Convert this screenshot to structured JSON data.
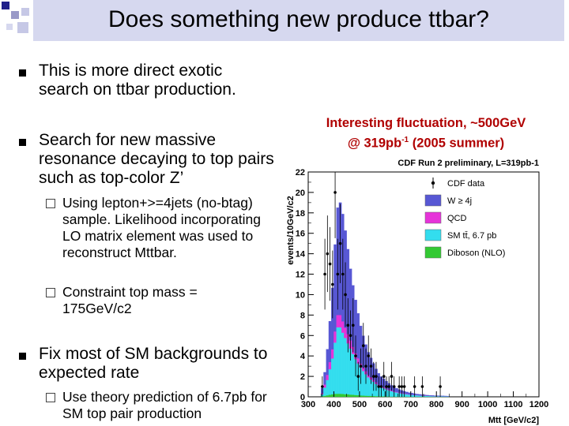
{
  "slide": {
    "title": "Does something new produce ttbar?",
    "bullets": [
      {
        "text": "This is more direct exotic search on ttbar production."
      },
      {
        "text": "Search for new massive resonance decaying to top pairs such as top-color Z’",
        "subbullets": [
          "Using lepton+>=4jets (no-btag) sample. Likelihood incorporating LO matrix element was used to reconstruct Mttbar.",
          "Constraint top mass = 175GeV/c2"
        ]
      },
      {
        "text": "Fix most of SM backgrounds to expected rate",
        "subbullets": [
          "Use theory prediction of 6.7pb for SM top pair production"
        ]
      }
    ]
  },
  "annotation": {
    "line1": "Interesting fluctuation, ~500GeV",
    "line2_prefix": "@ 319pb",
    "line2_sup": "-1",
    "line2_suffix": " (2005 summer)"
  },
  "chart_data": {
    "type": "bar",
    "title": "CDF Run 2 preliminary, L=319pb-1",
    "xlabel": "Mtt [GeV/c2]",
    "ylabel": "events/10GeV/c2",
    "xlim": [
      300,
      1200
    ],
    "ylim": [
      0,
      22
    ],
    "xticks": [
      300,
      400,
      500,
      600,
      700,
      800,
      900,
      1000,
      1100,
      1200
    ],
    "yticks": [
      0,
      2,
      4,
      6,
      8,
      10,
      12,
      14,
      16,
      18,
      20,
      22
    ],
    "legend_position": "top-right",
    "x": [
      355,
      365,
      375,
      385,
      395,
      405,
      415,
      425,
      435,
      445,
      455,
      465,
      475,
      485,
      495,
      505,
      515,
      525,
      535,
      545,
      555,
      565,
      575,
      585,
      595,
      605,
      615,
      625,
      635,
      645,
      655,
      665,
      675,
      685,
      695,
      705,
      715,
      725,
      735,
      745,
      755,
      765,
      775,
      785,
      795,
      805,
      815,
      825,
      835,
      845
    ],
    "series": [
      {
        "name": "CDF data",
        "values": [
          1,
          12,
          14,
          13,
          11,
          20,
          12,
          15,
          12,
          10,
          7,
          6,
          7,
          4,
          2,
          3,
          5,
          3,
          4,
          3,
          2,
          2,
          1,
          1,
          2,
          1,
          1,
          2,
          1,
          0,
          1,
          1,
          1,
          0,
          0,
          0,
          1,
          0,
          0,
          1,
          0,
          0,
          0,
          0,
          0,
          0,
          1,
          0,
          0,
          0
        ]
      },
      {
        "name": "W ≥ 4j",
        "values": [
          0.5,
          1.2,
          2.5,
          4.0,
          6.0,
          8.5,
          10.5,
          11.0,
          10.5,
          9.5,
          8.3,
          7.0,
          6.0,
          5.2,
          4.4,
          3.7,
          3.1,
          2.6,
          2.2,
          1.9,
          1.6,
          1.3,
          1.1,
          0.9,
          0.8,
          0.7,
          0.6,
          0.5,
          0.42,
          0.35,
          0.3,
          0.26,
          0.22,
          0.19,
          0.16,
          0.14,
          0.12,
          0.1,
          0.09,
          0.08,
          0.07,
          0.06,
          0.05,
          0.05,
          0.04,
          0.04,
          0.03,
          0.03,
          0.03,
          0.02
        ]
      },
      {
        "name": "QCD",
        "values": [
          0.1,
          0.3,
          0.5,
          0.7,
          0.9,
          1.1,
          1.2,
          1.2,
          1.1,
          1.0,
          0.9,
          0.8,
          0.7,
          0.6,
          0.5,
          0.4,
          0.35,
          0.3,
          0.26,
          0.22,
          0.19,
          0.16,
          0.14,
          0.12,
          0.1,
          0.09,
          0.08,
          0.07,
          0.06,
          0.05,
          0.05,
          0.04,
          0.04,
          0.03,
          0.03,
          0.03,
          0.02,
          0.02,
          0.02,
          0.02,
          0.02,
          0.01,
          0.01,
          0.01,
          0.01,
          0.01,
          0.01,
          0.01,
          0.01,
          0.01
        ]
      },
      {
        "name": "SM tt̄, 6.7 pb",
        "values": [
          0.2,
          0.8,
          1.5,
          2.5,
          3.5,
          5.0,
          6.5,
          6.5,
          6.0,
          5.5,
          5.0,
          4.5,
          4.0,
          3.5,
          3.1,
          2.7,
          2.4,
          2.1,
          1.8,
          1.6,
          1.4,
          1.2,
          1.0,
          0.9,
          0.8,
          0.7,
          0.6,
          0.52,
          0.45,
          0.4,
          0.35,
          0.3,
          0.26,
          0.23,
          0.2,
          0.18,
          0.16,
          0.14,
          0.12,
          0.1,
          0.09,
          0.08,
          0.07,
          0.06,
          0.05,
          0.05,
          0.04,
          0.04,
          0.03,
          0.03
        ]
      },
      {
        "name": "Diboson (NLO)",
        "values": [
          0.05,
          0.1,
          0.15,
          0.2,
          0.25,
          0.3,
          0.3,
          0.3,
          0.28,
          0.26,
          0.24,
          0.22,
          0.2,
          0.18,
          0.16,
          0.14,
          0.12,
          0.11,
          0.1,
          0.09,
          0.08,
          0.07,
          0.06,
          0.05,
          0.05,
          0.04,
          0.04,
          0.03,
          0.03,
          0.03,
          0.02,
          0.02,
          0.02,
          0.02,
          0.01,
          0.01,
          0.01,
          0.01,
          0.01,
          0.01,
          0.01,
          0.01,
          0.01,
          0.01,
          0.01,
          0.01,
          0.01,
          0.01,
          0.01,
          0.01
        ]
      }
    ],
    "colors": {
      "CDF data": "#000000",
      "W ≥ 4j": "#5757d4",
      "QCD": "#e633d9",
      "SM tt̄, 6.7 pb": "#33ddee",
      "Diboson (NLO)": "#33c933"
    }
  }
}
